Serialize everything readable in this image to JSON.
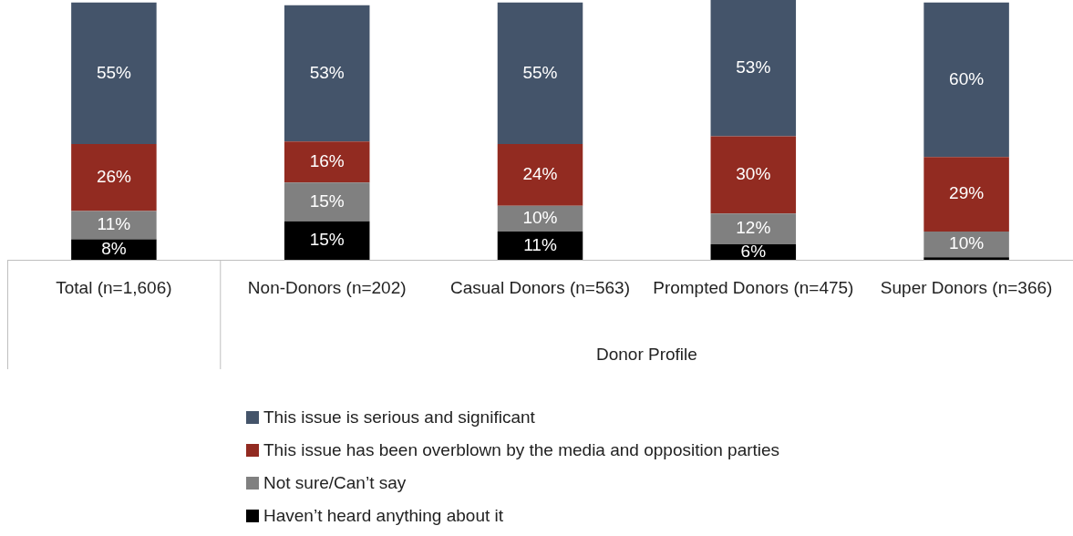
{
  "chart_data": {
    "type": "bar",
    "stacked": true,
    "xlabel": "Donor Profile",
    "categories": [
      "Total (n=1,606)",
      "Non-Donors (n=202)",
      "Casual Donors (n=563)",
      "Prompted Donors (n=475)",
      "Super Donors (n=366)"
    ],
    "ylim": [
      0,
      101
    ],
    "tick_labels": "x",
    "grid": false,
    "legend": "bottom",
    "series": [
      {
        "name": "Haven’t heard anything about it",
        "color": "#000000",
        "values": [
          8,
          15,
          11,
          6,
          1
        ],
        "value_labels": [
          "8%",
          "15%",
          "11%",
          "6%",
          null
        ]
      },
      {
        "name": "Not sure/Can’t say",
        "color": "#808080",
        "values": [
          11,
          15,
          10,
          12,
          10
        ],
        "value_labels": [
          "11%",
          "15%",
          "10%",
          "12%",
          "10%"
        ]
      },
      {
        "name": "This issue has been overblown by the media and opposition parties",
        "color": "#922b21",
        "values": [
          26,
          16,
          24,
          30,
          29
        ],
        "value_labels": [
          "26%",
          "16%",
          "24%",
          "30%",
          "29%"
        ]
      },
      {
        "name": "This issue is serious and significant",
        "color": "#44546a",
        "values": [
          55,
          53,
          55,
          53,
          60
        ],
        "value_labels": [
          "55%",
          "53%",
          "55%",
          "53%",
          "60%"
        ]
      }
    ]
  }
}
